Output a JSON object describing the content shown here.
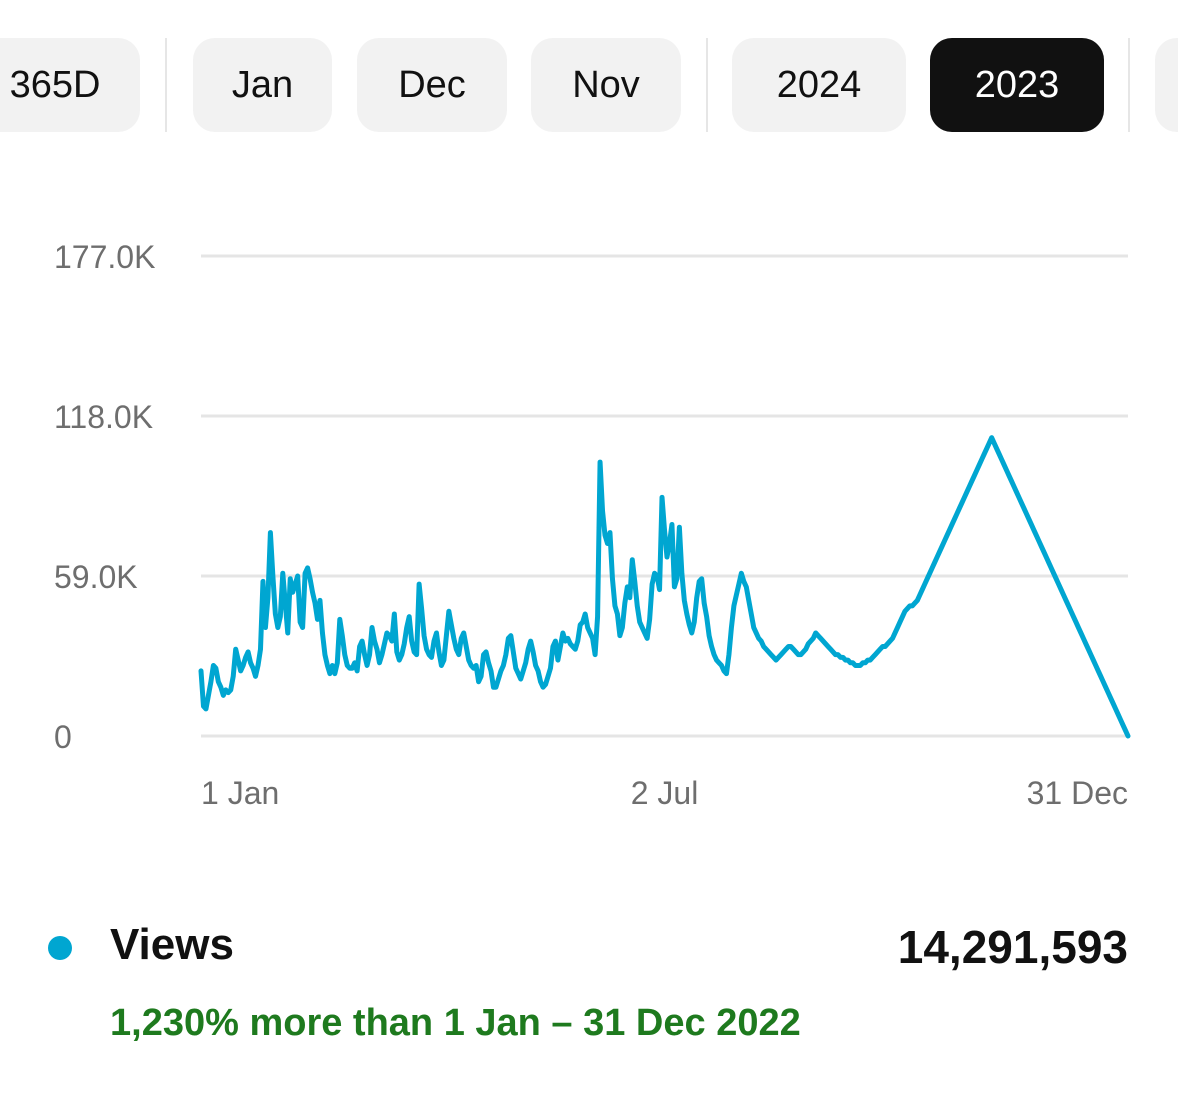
{
  "range_tabs": {
    "items": [
      {
        "label": "365D",
        "selected": false
      },
      {
        "label": "Jan",
        "selected": false
      },
      {
        "label": "Dec",
        "selected": false
      },
      {
        "label": "Nov",
        "selected": false
      },
      {
        "label": "2024",
        "selected": false
      },
      {
        "label": "2023",
        "selected": true
      },
      {
        "label": "",
        "selected": false
      }
    ]
  },
  "colors": {
    "series": "#00a6d1",
    "comparison_text": "#1e7a1e",
    "selected_tab_bg": "#111111",
    "tab_bg": "#f2f2f2",
    "gridline": "#e5e5e5",
    "axis_text": "#6e6e6e"
  },
  "chart_data": {
    "type": "line",
    "title": "",
    "xlabel": "",
    "ylabel": "",
    "ylim": [
      0,
      177000
    ],
    "grid": true,
    "y_ticks": [
      {
        "value": 0,
        "label": "0"
      },
      {
        "value": 59000,
        "label": "59.0K"
      },
      {
        "value": 118000,
        "label": "118.0K"
      },
      {
        "value": 177000,
        "label": "177.0K"
      }
    ],
    "x_ticks": [
      {
        "day": 1,
        "label": "1 Jan"
      },
      {
        "day": 183,
        "label": "2 Jul"
      },
      {
        "day": 365,
        "label": "31 Dec"
      }
    ],
    "series": [
      {
        "name": "Views",
        "x_start": "2023-01-01",
        "x_end": "2023-12-31",
        "values": [
          24000,
          11000,
          10000,
          15000,
          20000,
          26000,
          25000,
          20000,
          18000,
          15000,
          17000,
          16000,
          17000,
          22000,
          32000,
          28000,
          24000,
          26000,
          29000,
          31000,
          27000,
          25000,
          22000,
          26000,
          32000,
          57000,
          40000,
          51000,
          75000,
          59000,
          45000,
          40000,
          44000,
          60000,
          49000,
          38000,
          58000,
          53000,
          56000,
          59000,
          42000,
          40000,
          60000,
          62000,
          58000,
          53000,
          49000,
          43000,
          50000,
          38000,
          30000,
          26000,
          23000,
          26000,
          23000,
          27000,
          43000,
          37000,
          30000,
          26000,
          25000,
          25000,
          27000,
          24000,
          33000,
          35000,
          30000,
          26000,
          30000,
          40000,
          35000,
          32000,
          27000,
          30000,
          34000,
          38000,
          37000,
          35000,
          45000,
          31000,
          28000,
          30000,
          34000,
          40000,
          44000,
          35000,
          31000,
          30000,
          56000,
          47000,
          37000,
          32000,
          30000,
          29000,
          35000,
          38000,
          31000,
          26000,
          28000,
          37000,
          46000,
          41000,
          36000,
          32000,
          30000,
          36000,
          38000,
          33000,
          28000,
          26000,
          25000,
          26000,
          20000,
          22000,
          30000,
          31000,
          27000,
          24000,
          18000,
          18000,
          21000,
          24000,
          26000,
          30000,
          36000,
          37000,
          31000,
          25000,
          23000,
          21000,
          24000,
          27000,
          32000,
          35000,
          31000,
          26000,
          24000,
          20000,
          18000,
          19000,
          22000,
          25000,
          33000,
          35000,
          28000,
          33000,
          38000,
          35000,
          36000,
          34000,
          33000,
          32000,
          35000,
          41000,
          42000,
          45000,
          40000,
          38000,
          36000,
          30000,
          44000,
          101000,
          83000,
          74000,
          71000,
          75000,
          58000,
          48000,
          45000,
          37000,
          40000,
          49000,
          55000,
          51000,
          65000,
          57000,
          48000,
          42000,
          40000,
          38000,
          36000,
          43000,
          56000,
          60000,
          59000,
          54000,
          88000,
          76000,
          66000,
          71000,
          78000,
          55000,
          58000,
          77000,
          60000,
          50000,
          45000,
          41000,
          38000,
          42000,
          51000,
          57000,
          58000,
          49000,
          44000,
          37000,
          33000,
          30000,
          28000,
          27000,
          26000,
          24000,
          23000,
          30000,
          40000,
          48000,
          52000,
          56000,
          60000,
          57000,
          55000,
          50000,
          45000,
          40000,
          38000,
          36000,
          35000,
          33000,
          32000,
          31000,
          30000,
          29000,
          28000,
          29000,
          30000,
          31000,
          32000,
          33000,
          33000,
          32000,
          31000,
          30000,
          30000,
          31000,
          32000,
          34000,
          35000,
          36000,
          38000,
          37000,
          36000,
          35000,
          34000,
          33000,
          32000,
          31000,
          30000,
          30000,
          29000,
          29000,
          28000,
          28000,
          27000,
          27000,
          26000,
          26000,
          26000,
          27000,
          27000,
          28000,
          28000,
          29000,
          30000,
          31000,
          32000,
          33000,
          33000,
          34000,
          35000,
          36000,
          38000,
          40000,
          42000,
          44000,
          46000,
          47000,
          48000,
          48000,
          49000,
          50000,
          52000,
          54000,
          56000,
          58000,
          60000,
          62000,
          64000,
          66000,
          68000,
          70000,
          72000,
          74000,
          76000,
          78000,
          80000,
          82000,
          84000,
          86000,
          88000,
          90000,
          92000,
          94000,
          96000,
          98000,
          100000,
          102000,
          104000,
          106000,
          108000,
          110000,
          108000,
          106000,
          104000,
          102000,
          100000,
          98000,
          96000,
          94000,
          92000,
          90000,
          88000,
          86000,
          84000,
          82000,
          80000,
          78000,
          76000,
          74000,
          72000,
          70000,
          68000,
          66000,
          64000,
          62000,
          60000,
          58000,
          56000,
          54000,
          52000,
          50000,
          48000,
          46000,
          44000,
          42000,
          40000,
          38000,
          36000,
          34000,
          32000,
          30000,
          28000,
          26000,
          24000,
          22000,
          20000,
          18000,
          16000,
          14000,
          12000,
          10000,
          8000,
          6000,
          4000,
          2000,
          0
        ]
      }
    ]
  },
  "metric": {
    "label": "Views",
    "value": "14,291,593",
    "comparison": "1,230% more than 1 Jan – 31 Dec 2022"
  }
}
